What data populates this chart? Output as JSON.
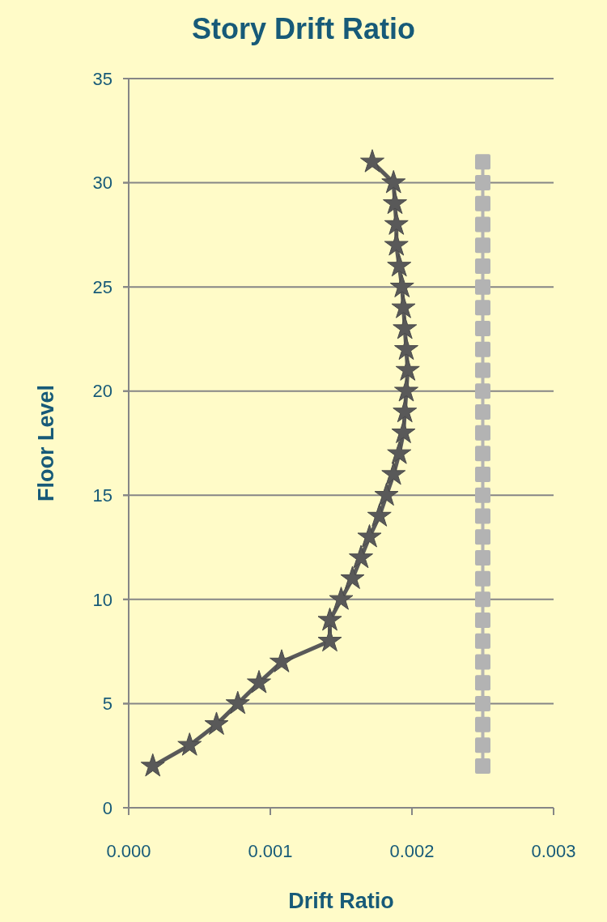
{
  "chart_data": {
    "type": "line",
    "title": "Story Drift Ratio",
    "xlabel": "Drift Ratio",
    "ylabel": "Floor Level",
    "xlim": [
      0,
      0.003
    ],
    "xticks": [
      {
        "value": 0,
        "label": "0.000"
      },
      {
        "value": 0.001,
        "label": "0.001"
      },
      {
        "value": 0.002,
        "label": "0.002"
      },
      {
        "value": 0.003,
        "label": "0.003"
      }
    ],
    "ylim": [
      0,
      35
    ],
    "yticks": [
      0,
      5,
      10,
      15,
      20,
      25,
      30,
      35
    ],
    "grid": "y",
    "series": [
      {
        "color": "#595959",
        "marker": "star",
        "x": [
          0.00017,
          0.00043,
          0.00062,
          0.00077,
          0.00092,
          0.00108,
          0.00142,
          0.00142,
          0.0015,
          0.00158,
          0.00164,
          0.0017,
          0.00177,
          0.00182,
          0.00187,
          0.00191,
          0.00194,
          0.00195,
          0.00196,
          0.00197,
          0.00196,
          0.00195,
          0.00194,
          0.00193,
          0.00191,
          0.00189,
          0.00189,
          0.00188,
          0.00187,
          0.00172
        ],
        "values": [
          2,
          3,
          4,
          5,
          6,
          7,
          8,
          9,
          10,
          11,
          12,
          13,
          14,
          15,
          16,
          17,
          18,
          19,
          20,
          21,
          22,
          23,
          24,
          25,
          26,
          27,
          28,
          29,
          30,
          31
        ]
      },
      {
        "color": "#b3b3b3",
        "marker": "square",
        "x": [
          0.0025,
          0.0025,
          0.0025,
          0.0025,
          0.0025,
          0.0025,
          0.0025,
          0.0025,
          0.0025,
          0.0025,
          0.0025,
          0.0025,
          0.0025,
          0.0025,
          0.0025,
          0.0025,
          0.0025,
          0.0025,
          0.0025,
          0.0025,
          0.0025,
          0.0025,
          0.0025,
          0.0025,
          0.0025,
          0.0025,
          0.0025,
          0.0025,
          0.0025,
          0.0025
        ],
        "values": [
          2,
          3,
          4,
          5,
          6,
          7,
          8,
          9,
          10,
          11,
          12,
          13,
          14,
          15,
          16,
          17,
          18,
          19,
          20,
          21,
          22,
          23,
          24,
          25,
          26,
          27,
          28,
          29,
          30,
          31
        ]
      }
    ]
  }
}
